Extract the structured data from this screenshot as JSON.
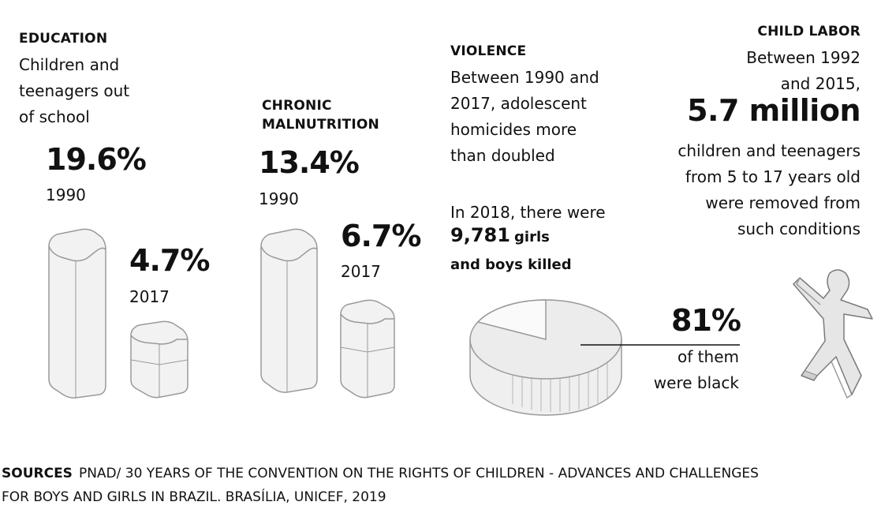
{
  "education": {
    "heading": "EDUCATION",
    "description": [
      "Children and",
      "teenagers out",
      "of school"
    ],
    "value_1990": "19.6%",
    "year_1990": "1990",
    "value_2017": "4.7%",
    "year_2017": "2017"
  },
  "malnutrition": {
    "heading": [
      "CHRONIC",
      "MALNUTRITION"
    ],
    "value_1990": "13.4%",
    "year_1990": "1990",
    "value_2017": "6.7%",
    "year_2017": "2017"
  },
  "violence": {
    "heading": "VIOLENCE",
    "description": [
      "Between 1990 and",
      "2017, adolescent",
      "homicides more",
      "than doubled"
    ],
    "intro": "In 2018, there were",
    "killed_number": "9,781",
    "killed_rest": "girls",
    "killed_line2": "and boys killed",
    "share_value": "81%",
    "share_caption": [
      "of them",
      "were black"
    ]
  },
  "child_labor": {
    "heading": "CHILD LABOR",
    "lines_top": [
      "Between 1992",
      "and 2015,"
    ],
    "big_value": "5.7 million",
    "lines_bottom": [
      "children and teenagers",
      "from 5 to 17 years old",
      "were removed from",
      "such conditions"
    ]
  },
  "sources": {
    "label": "SOURCES",
    "line1": "PNAD/ 30 YEARS OF THE CONVENTION ON THE RIGHTS OF CHILDREN - ADVANCES AND CHALLENGES",
    "line2": "FOR BOYS AND GIRLS IN BRAZIL. BRASÍLIA, UNICEF, 2019"
  },
  "colors": {
    "shape_fill": "#f2f2f2",
    "shape_stroke": "#9a9a9a",
    "text": "#111111"
  },
  "chart_data": [
    {
      "type": "bar",
      "categories": [
        "1990",
        "2017"
      ],
      "values": [
        19.6,
        4.7
      ],
      "title": "EDUCATION"
    },
    {
      "type": "bar",
      "categories": [
        "1990",
        "2017"
      ],
      "values": [
        13.4,
        6.7
      ],
      "title": "CHRONIC MALNUTRITION"
    },
    {
      "type": "pie",
      "values": [
        81,
        19
      ],
      "title": "VIOLENCE"
    }
  ]
}
